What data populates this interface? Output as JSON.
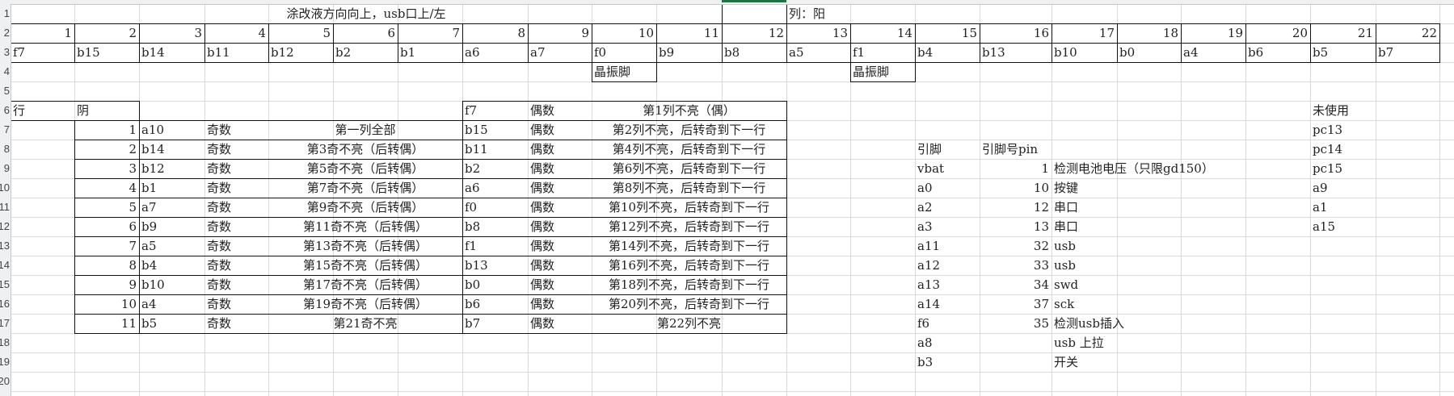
{
  "row_numbers": [
    1,
    2,
    3,
    4,
    5,
    6,
    7,
    8,
    9,
    10,
    11,
    12,
    13,
    14,
    15,
    16,
    17,
    18,
    19,
    20
  ],
  "title": "涂改液方向向上，usb口上/左",
  "column_label": "列：阳",
  "column_numbers": [
    "1",
    "2",
    "3",
    "4",
    "5",
    "6",
    "7",
    "8",
    "9",
    "10",
    "11",
    "12",
    "13",
    "14",
    "15",
    "16",
    "17",
    "18",
    "19",
    "20",
    "21",
    "22"
  ],
  "column_pins": [
    "f7",
    "b15",
    "b14",
    "b11",
    "b12",
    "b2",
    "b1",
    "a6",
    "a7",
    "f0",
    "b9",
    "b8",
    "a5",
    "f1",
    "b4",
    "b13",
    "b10",
    "b0",
    "a4",
    "b6",
    "b5",
    "b7"
  ],
  "crystal_labels": [
    "晶振脚",
    "晶振脚"
  ],
  "row_table": {
    "header": {
      "row_label": "行",
      "row_type": "阴",
      "even_pin": "f7",
      "even_parity": "偶数",
      "even_note": "第1列不亮（偶）"
    },
    "rows": [
      {
        "n": "1",
        "pin": "a10",
        "parity": "奇数",
        "note": "第一列全部",
        "even_pin": "b15",
        "even_parity": "偶数",
        "even_note": "第2列不亮，后转奇到下一行"
      },
      {
        "n": "2",
        "pin": "b14",
        "parity": "奇数",
        "note": "第3奇不亮（后转偶）",
        "even_pin": "b11",
        "even_parity": "偶数",
        "even_note": "第4列不亮，后转奇到下一行"
      },
      {
        "n": "3",
        "pin": "b12",
        "parity": "奇数",
        "note": "第5奇不亮（后转偶）",
        "even_pin": "b2",
        "even_parity": "偶数",
        "even_note": "第6列不亮，后转奇到下一行"
      },
      {
        "n": "4",
        "pin": "b1",
        "parity": "奇数",
        "note": "第7奇不亮（后转偶）",
        "even_pin": "a6",
        "even_parity": "偶数",
        "even_note": "第8列不亮，后转奇到下一行"
      },
      {
        "n": "5",
        "pin": "a7",
        "parity": "奇数",
        "note": "第9奇不亮（后转偶）",
        "even_pin": "f0",
        "even_parity": "偶数",
        "even_note": "第10列不亮，后转奇到下一行"
      },
      {
        "n": "6",
        "pin": "b9",
        "parity": "奇数",
        "note": "第11奇不亮（后转偶）",
        "even_pin": "b8",
        "even_parity": "偶数",
        "even_note": "第12列不亮，后转奇到下一行"
      },
      {
        "n": "7",
        "pin": "a5",
        "parity": "奇数",
        "note": "第13奇不亮（后转偶）",
        "even_pin": "f1",
        "even_parity": "偶数",
        "even_note": "第14列不亮，后转奇到下一行"
      },
      {
        "n": "8",
        "pin": "b4",
        "parity": "奇数",
        "note": "第15奇不亮（后转偶）",
        "even_pin": "b13",
        "even_parity": "偶数",
        "even_note": "第16列不亮，后转奇到下一行"
      },
      {
        "n": "9",
        "pin": "b10",
        "parity": "奇数",
        "note": "第17奇不亮（后转偶）",
        "even_pin": "b0",
        "even_parity": "偶数",
        "even_note": "第18列不亮，后转奇到下一行"
      },
      {
        "n": "10",
        "pin": "a4",
        "parity": "奇数",
        "note": "第19奇不亮（后转偶）",
        "even_pin": "b6",
        "even_parity": "偶数",
        "even_note": "第20列不亮，后转奇到下一行"
      },
      {
        "n": "11",
        "pin": "b5",
        "parity": "奇数",
        "note": "第21奇不亮",
        "even_pin": "b7",
        "even_parity": "偶数",
        "even_note": "第22列不亮"
      }
    ]
  },
  "pin_table": {
    "header": {
      "pin": "引脚",
      "pin_no": "引脚号pin"
    },
    "rows": [
      {
        "pin": "vbat",
        "pin_no": "1",
        "desc": "检测电池电压（只限gd150）"
      },
      {
        "pin": "a0",
        "pin_no": "10",
        "desc": "按键"
      },
      {
        "pin": "a2",
        "pin_no": "12",
        "desc": "串口"
      },
      {
        "pin": "a3",
        "pin_no": "13",
        "desc": "串口"
      },
      {
        "pin": "a11",
        "pin_no": "32",
        "desc": "usb"
      },
      {
        "pin": "a12",
        "pin_no": "33",
        "desc": "usb"
      },
      {
        "pin": "a13",
        "pin_no": "34",
        "desc": "swd"
      },
      {
        "pin": "a14",
        "pin_no": "37",
        "desc": "sck"
      },
      {
        "pin": "f6",
        "pin_no": "35",
        "desc": "检测usb插入"
      },
      {
        "pin": "a8",
        "pin_no": "",
        "desc": "usb 上拉"
      },
      {
        "pin": "b3",
        "pin_no": "",
        "desc": "开关"
      }
    ]
  },
  "unused": {
    "label": "未使用",
    "pins": [
      "pc13",
      "pc14",
      "pc15",
      "a9",
      "a1",
      "a15"
    ]
  },
  "colors": {
    "border": "#111111",
    "gridline": "#d9d9d9",
    "selection": "#217346"
  }
}
